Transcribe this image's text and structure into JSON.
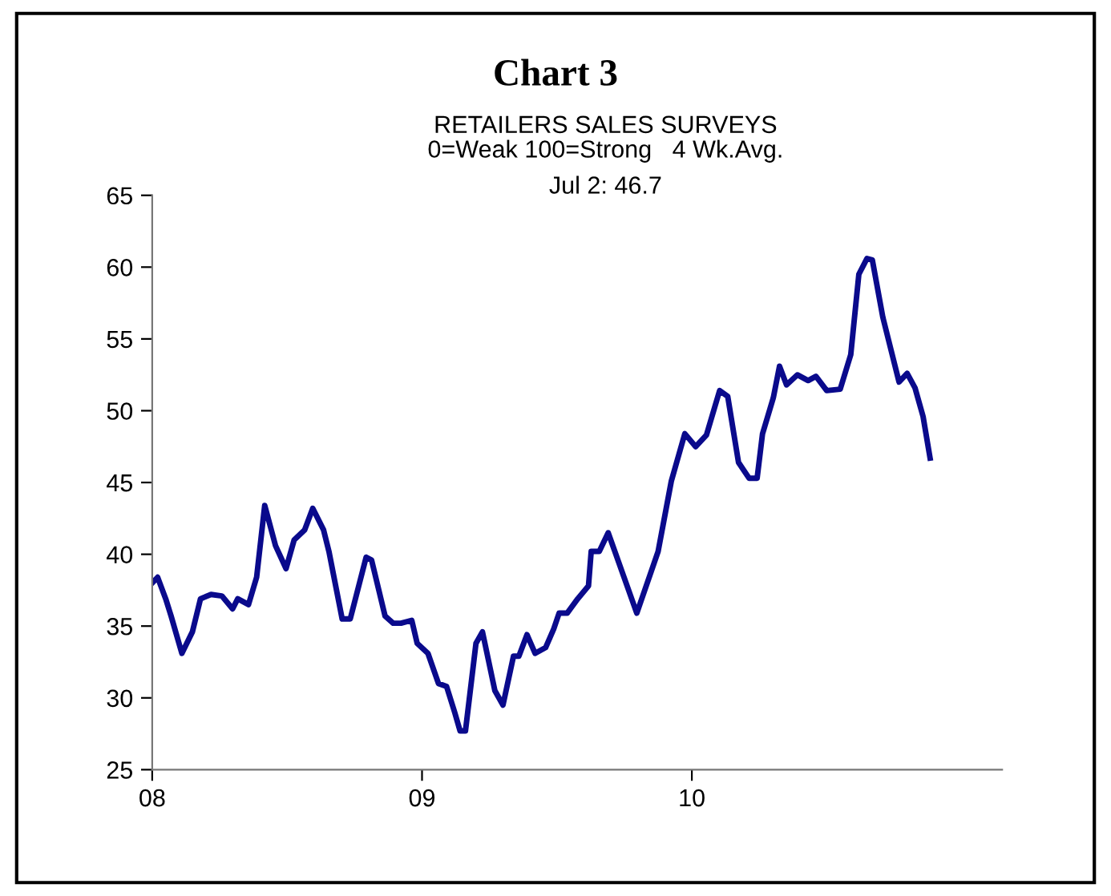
{
  "chart_data": {
    "type": "line",
    "title": "Chart 3",
    "subtitle": "RETAILERS SALES SURVEYS\n0=Weak 100=Strong   4 Wk.Avg.",
    "annotations": [
      "Jul 2: 46.7"
    ],
    "x": [
      2008.0,
      2008.02,
      2008.05,
      2008.07,
      2008.11,
      2008.149,
      2008.179,
      2008.218,
      2008.258,
      2008.298,
      2008.317,
      2008.357,
      2008.387,
      2008.417,
      2008.457,
      2008.496,
      2008.526,
      2008.565,
      2008.595,
      2008.635,
      2008.655,
      2008.704,
      2008.734,
      2008.793,
      2008.813,
      2008.863,
      2008.893,
      2008.922,
      2008.962,
      2008.982,
      2009.022,
      2009.061,
      2009.091,
      2009.121,
      2009.141,
      2009.161,
      2009.2,
      2009.224,
      2009.27,
      2009.3,
      2009.339,
      2009.359,
      2009.389,
      2009.419,
      2009.458,
      2009.488,
      2009.508,
      2009.538,
      2009.577,
      2009.617,
      2009.627,
      2009.657,
      2009.69,
      2009.796,
      2009.875,
      2009.924,
      2009.974,
      2010.014,
      2010.054,
      2010.103,
      2010.133,
      2010.173,
      2010.212,
      2010.242,
      2010.262,
      2010.302,
      2010.325,
      2010.351,
      2010.391,
      2010.431,
      2010.46,
      2010.5,
      2010.55,
      2010.589,
      2010.619,
      2010.649,
      2010.669,
      2010.708,
      2010.768,
      2010.798,
      2010.827,
      2010.857,
      2010.883
    ],
    "series": [
      {
        "color": "#0a0a8c",
        "values": [
          38.0,
          38.4,
          36.9,
          35.7,
          33.1,
          34.6,
          36.9,
          37.2,
          37.1,
          36.2,
          36.9,
          36.5,
          38.4,
          43.4,
          40.6,
          39.0,
          41.0,
          41.7,
          43.2,
          41.7,
          40.2,
          35.5,
          35.5,
          39.8,
          39.6,
          35.7,
          35.2,
          35.2,
          35.4,
          33.8,
          33.1,
          31.0,
          30.8,
          29.0,
          27.7,
          27.7,
          33.8,
          34.6,
          30.5,
          29.5,
          32.9,
          32.9,
          34.4,
          33.1,
          33.5,
          34.8,
          35.9,
          35.9,
          36.9,
          37.8,
          40.2,
          40.2,
          41.5,
          35.9,
          40.2,
          45.1,
          48.4,
          47.5,
          48.3,
          51.4,
          51.0,
          46.4,
          45.3,
          45.3,
          48.4,
          50.9,
          53.1,
          51.8,
          52.5,
          52.1,
          52.4,
          51.4,
          51.5,
          53.9,
          59.5,
          60.6,
          60.5,
          56.5,
          52.0,
          52.6,
          51.6,
          49.6,
          46.7
        ]
      }
    ],
    "xlim": [
      2008,
      2011.15
    ],
    "xticks": [
      {
        "value": 2008,
        "label": "08"
      },
      {
        "value": 2009,
        "label": "09"
      },
      {
        "value": 2010,
        "label": "10"
      }
    ],
    "ylim": [
      25,
      65
    ],
    "yticks": [
      25,
      30,
      35,
      40,
      45,
      50,
      55,
      60,
      65
    ],
    "grid": false,
    "legend": false
  }
}
